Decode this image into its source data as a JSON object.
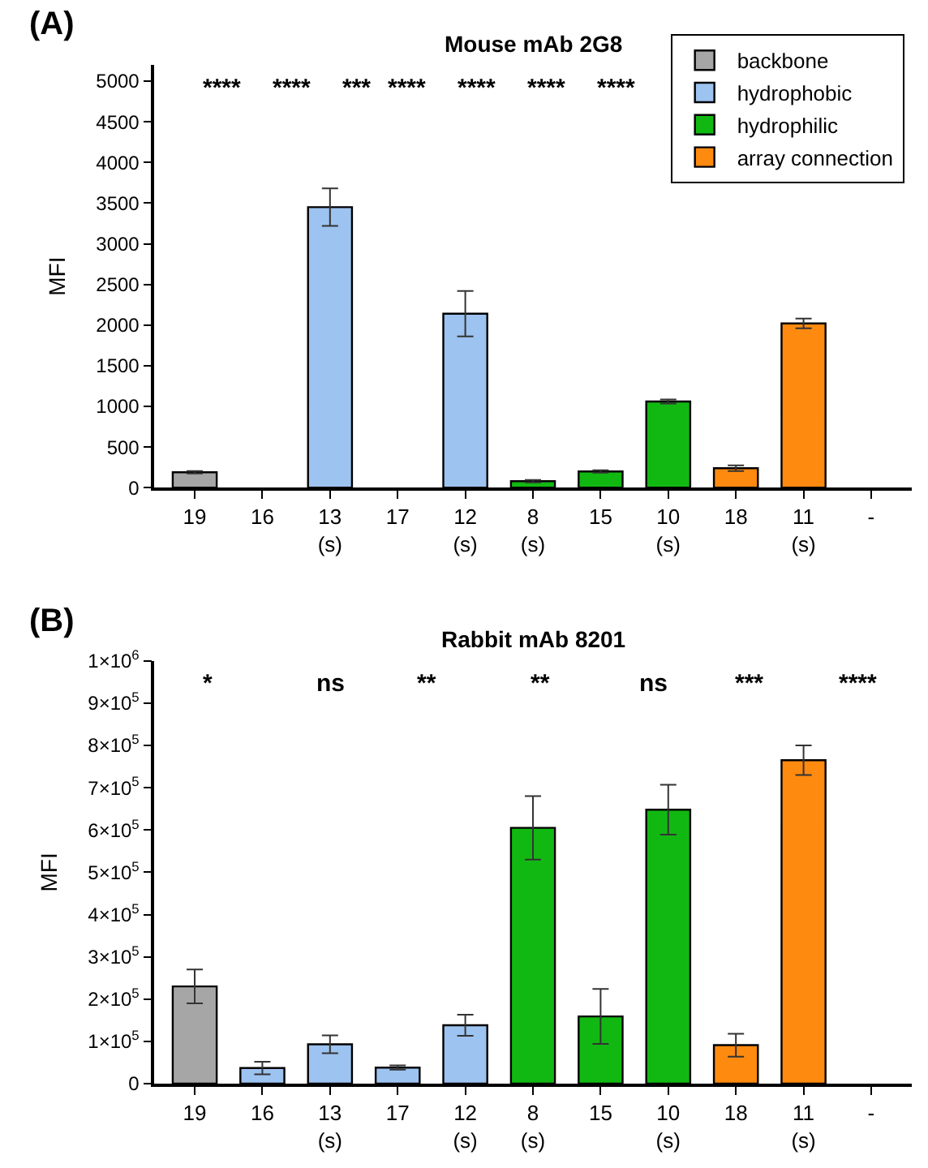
{
  "chart_data": [
    {
      "type": "bar",
      "title": "Mouse mAb 2G8",
      "ylabel": "MFI",
      "categories": [
        "19",
        "16",
        "13\n(s)",
        "17",
        "12\n(s)",
        "8\n(s)",
        "15",
        "10\n(s)",
        "18",
        "11\n(s)",
        "-"
      ],
      "series": [
        {
          "name": "backbone",
          "color": "#a6a6a6",
          "values": [
            190,
            null,
            null,
            null,
            null,
            null,
            null,
            null,
            null,
            null,
            null
          ],
          "errors": [
            15,
            null,
            null,
            null,
            null,
            null,
            null,
            null,
            null,
            null,
            null
          ]
        },
        {
          "name": "hydrophobic",
          "color": "#9dc3f0",
          "values": [
            null,
            null,
            3450,
            null,
            2140,
            null,
            null,
            null,
            null,
            null,
            null
          ],
          "errors": [
            null,
            null,
            230,
            null,
            280,
            null,
            null,
            null,
            null,
            null,
            null
          ]
        },
        {
          "name": "hydrophilic",
          "color": "#12b812",
          "values": [
            null,
            null,
            null,
            null,
            null,
            80,
            200,
            1060,
            null,
            null,
            null
          ],
          "errors": [
            null,
            null,
            null,
            null,
            null,
            15,
            15,
            25,
            null,
            null,
            null
          ]
        },
        {
          "name": "array connection",
          "color": "#ff8a10",
          "values": [
            null,
            null,
            null,
            null,
            null,
            null,
            null,
            null,
            240,
            2020,
            null
          ],
          "errors": [
            null,
            null,
            null,
            null,
            null,
            null,
            null,
            null,
            35,
            60,
            null
          ]
        }
      ],
      "ylim": [
        0,
        5200
      ],
      "yticks": [
        0,
        500,
        1000,
        1500,
        2000,
        2500,
        3000,
        3500,
        4000,
        4500,
        5000
      ],
      "legend": "top right",
      "annotations": [
        "(A)",
        "****",
        "****",
        "***",
        "****",
        "****",
        "****",
        "****"
      ]
    },
    {
      "type": "bar",
      "title": "Rabbit mAb 8201",
      "ylabel": "MFI",
      "categories": [
        "19",
        "16",
        "13\n(s)",
        "17",
        "12\n(s)",
        "8\n(s)",
        "15",
        "10\n(s)",
        "18",
        "11\n(s)",
        "-"
      ],
      "series": [
        {
          "color": "#a6a6a6",
          "values": [
            230000,
            null,
            null,
            null,
            null,
            null,
            null,
            null,
            null,
            null,
            null
          ],
          "errors": [
            40000,
            null,
            null,
            null,
            null,
            null,
            null,
            null,
            null,
            null,
            null
          ]
        },
        {
          "color": "#9dc3f0",
          "values": [
            null,
            37000,
            93000,
            38000,
            138000,
            null,
            null,
            null,
            null,
            null,
            null
          ],
          "errors": [
            null,
            15000,
            21000,
            5000,
            25000,
            null,
            null,
            null,
            null,
            null,
            null
          ]
        },
        {
          "color": "#12b812",
          "values": [
            null,
            null,
            null,
            null,
            null,
            605000,
            159000,
            648000,
            null,
            null,
            null
          ],
          "errors": [
            null,
            null,
            null,
            null,
            null,
            75000,
            65000,
            59000,
            null,
            null,
            null
          ]
        },
        {
          "color": "#ff8a10",
          "values": [
            null,
            null,
            null,
            null,
            null,
            null,
            null,
            null,
            91000,
            765000,
            null
          ],
          "errors": [
            null,
            null,
            null,
            null,
            null,
            null,
            null,
            null,
            27000,
            35000,
            null
          ]
        }
      ],
      "ylim": [
        0,
        1000000
      ],
      "yticks": [
        0,
        {
          "value": 100000,
          "label": "1×10$^{5}$"
        },
        {
          "value": 200000,
          "label": "2×10$^{5}$"
        },
        {
          "value": 300000,
          "label": "3×10$^{5}$"
        },
        {
          "value": 400000,
          "label": "4×10$^{5}$"
        },
        {
          "value": 500000,
          "label": "5×10$^{5}$"
        },
        {
          "value": 600000,
          "label": "6×10$^{5}$"
        },
        {
          "value": 700000,
          "label": "7×10$^{5}$"
        },
        {
          "value": 800000,
          "label": "8×10$^{5}$"
        },
        {
          "value": 900000,
          "label": "9×10$^{5}$"
        },
        {
          "value": 1000000,
          "label": "1×10$^{6}$"
        }
      ],
      "annotations": [
        "(B)",
        "*",
        "ns",
        "**",
        "**",
        "ns",
        "***",
        "****"
      ]
    }
  ]
}
